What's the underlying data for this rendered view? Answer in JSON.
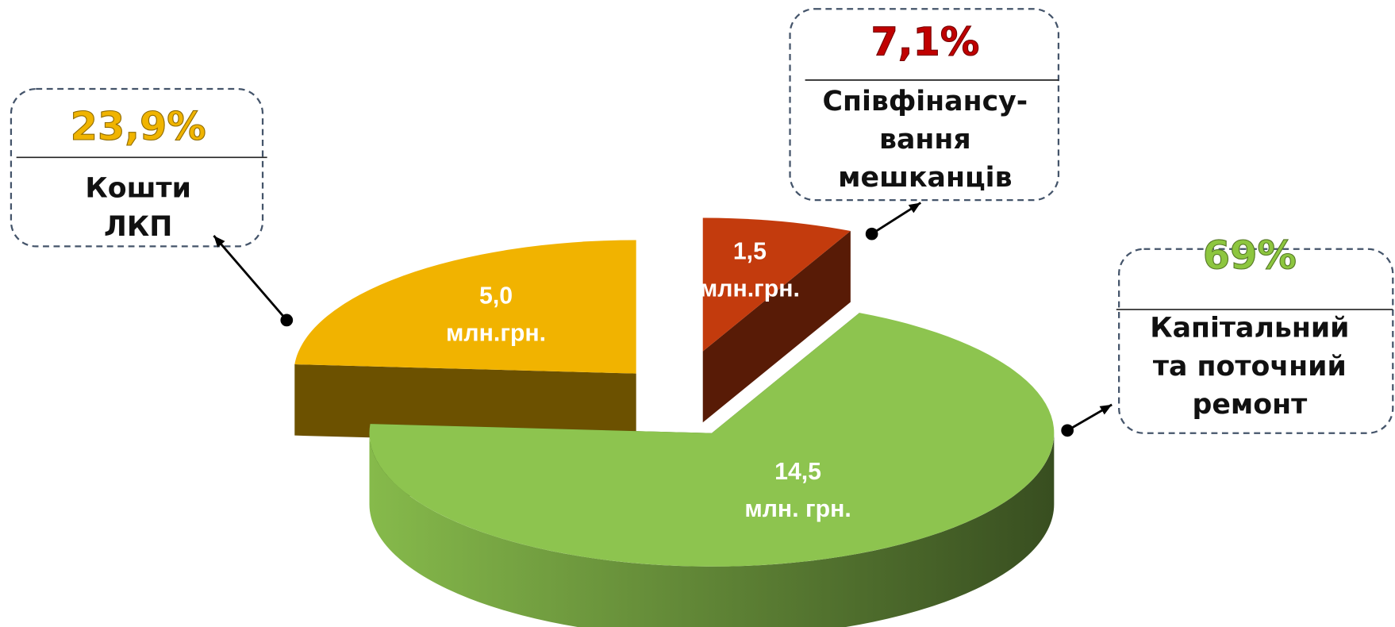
{
  "chart_data": {
    "type": "pie",
    "categories": [
      [
        "Співфінансу-",
        "вання",
        "мешканців"
      ],
      [
        "Капітальний",
        "та поточний",
        "ремонт"
      ],
      [
        "Кошти",
        "ЛКП"
      ]
    ],
    "values": [
      7.1,
      69,
      23.9
    ],
    "value_labels": [
      "7,1%",
      "69%",
      "23,9%"
    ],
    "amounts": [
      1.5,
      14.5,
      5.0
    ],
    "amount_labels": [
      [
        "1,5",
        "млн.грн."
      ],
      [
        "14,5",
        "млн. грн."
      ],
      [
        "5,0",
        "млн.грн."
      ]
    ],
    "colors": [
      "#c33b0d",
      "#8dc44f",
      "#f1b300"
    ],
    "label_colors": [
      "#c00000",
      "#8dc63f",
      "#f0b400"
    ]
  }
}
